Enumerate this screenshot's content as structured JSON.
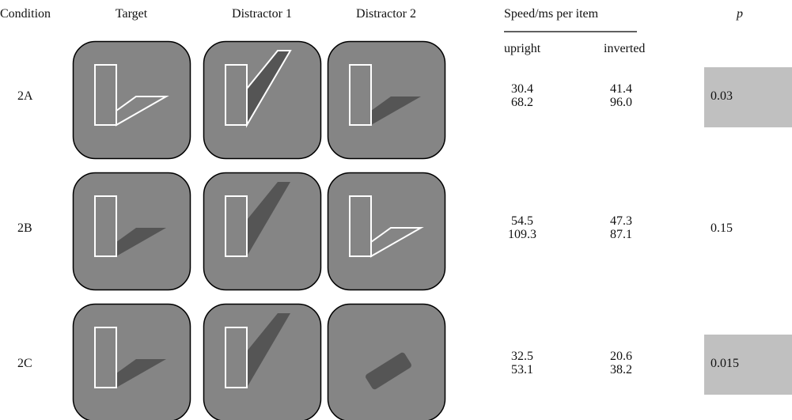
{
  "header": {
    "condition": "Condition",
    "target": "Target",
    "distractor1": "Distractor 1",
    "distractor2": "Distractor 2",
    "speed": "Speed/ms per item",
    "p": "p",
    "upright": "upright",
    "inverted": "inverted"
  },
  "rows": [
    {
      "condition": "2A",
      "upright": [
        "30.4",
        "68.2"
      ],
      "inverted": [
        "41.4",
        "96.0"
      ],
      "p": "0.03",
      "highlight": true
    },
    {
      "condition": "2B",
      "upright": [
        "54.5",
        "109.3"
      ],
      "inverted": [
        "47.3",
        "87.1"
      ],
      "p": "0.15",
      "highlight": false
    },
    {
      "condition": "2C",
      "upright": [
        "32.5",
        "53.1"
      ],
      "inverted": [
        "20.6",
        "38.2"
      ],
      "p": "0.015",
      "highlight": true
    }
  ]
}
